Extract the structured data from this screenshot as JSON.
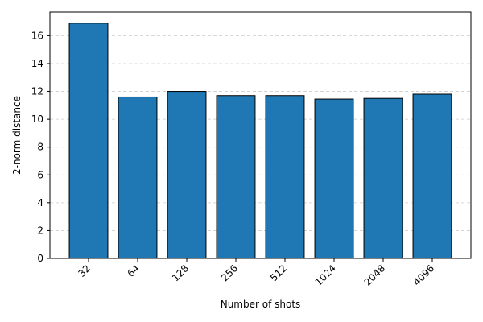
{
  "chart_data": {
    "type": "bar",
    "title": "",
    "xlabel": "Number of shots",
    "ylabel": "2-norm distance",
    "categories": [
      "32",
      "64",
      "128",
      "256",
      "512",
      "1024",
      "2048",
      "4096"
    ],
    "values": [
      16.9,
      11.6,
      12.0,
      11.7,
      11.7,
      11.45,
      11.5,
      11.8
    ],
    "ylim": [
      0,
      17.7
    ],
    "yticks": [
      0,
      2,
      4,
      6,
      8,
      10,
      12,
      14,
      16
    ],
    "grid": {
      "y": true,
      "style": "dashed"
    },
    "colors": {
      "bar": "#1f77b4",
      "edge": "#000000",
      "grid": "#cccccc"
    },
    "x_tick_rotation_deg": 45,
    "legend": "none"
  }
}
